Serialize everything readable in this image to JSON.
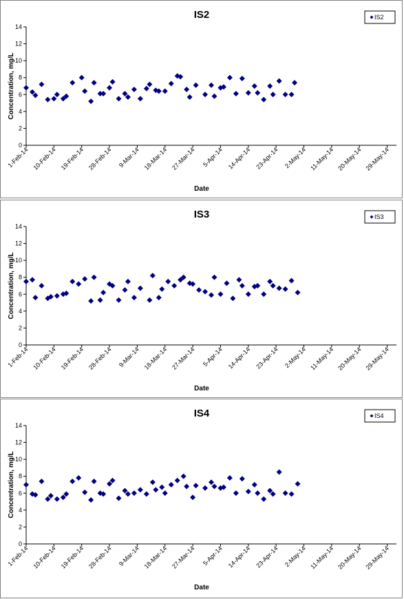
{
  "chart_data": [
    {
      "type": "scatter",
      "title": "IS2",
      "xlabel": "Date",
      "ylabel": "Concentration, mg/L",
      "ylim": [
        0,
        14
      ],
      "yticks": [
        0,
        2,
        4,
        6,
        8,
        10,
        12,
        14
      ],
      "xlim": [
        "2014-02-01",
        "2014-06-01"
      ],
      "xtick_labels": [
        "1-Feb-14",
        "10-Feb-14",
        "19-Feb-14",
        "28-Feb-14",
        "9-Mar-14",
        "18-Mar-14",
        "27-Mar-14",
        "5-Apr-14",
        "14-Apr-14",
        "23-Apr-14",
        "2-May-14",
        "11-May-14",
        "20-May-14",
        "29-May-14"
      ],
      "xtick_dates": [
        "2014-02-01",
        "2014-02-10",
        "2014-02-19",
        "2014-02-28",
        "2014-03-09",
        "2014-03-18",
        "2014-03-27",
        "2014-04-05",
        "2014-04-14",
        "2014-04-23",
        "2014-05-02",
        "2014-05-11",
        "2014-05-20",
        "2014-05-29"
      ],
      "grid": false,
      "legend_position": "top-right",
      "series": [
        {
          "name": "IS2",
          "color": "#000080",
          "marker": "diamond",
          "points": [
            [
              "2014-02-01",
              6.8
            ],
            [
              "2014-02-03",
              6.3
            ],
            [
              "2014-02-04",
              5.9
            ],
            [
              "2014-02-06",
              7.2
            ],
            [
              "2014-02-08",
              5.4
            ],
            [
              "2014-02-10",
              5.5
            ],
            [
              "2014-02-11",
              6.0
            ],
            [
              "2014-02-13",
              5.5
            ],
            [
              "2014-02-14",
              5.8
            ],
            [
              "2014-02-16",
              7.4
            ],
            [
              "2014-02-19",
              8.0
            ],
            [
              "2014-02-20",
              6.4
            ],
            [
              "2014-02-22",
              5.2
            ],
            [
              "2014-02-23",
              7.4
            ],
            [
              "2014-02-25",
              6.1
            ],
            [
              "2014-02-26",
              6.1
            ],
            [
              "2014-02-28",
              6.8
            ],
            [
              "2014-03-01",
              7.5
            ],
            [
              "2014-03-03",
              5.5
            ],
            [
              "2014-03-05",
              6.1
            ],
            [
              "2014-03-06",
              5.7
            ],
            [
              "2014-03-08",
              6.6
            ],
            [
              "2014-03-10",
              5.5
            ],
            [
              "2014-03-12",
              6.7
            ],
            [
              "2014-03-13",
              7.2
            ],
            [
              "2014-03-15",
              6.5
            ],
            [
              "2014-03-16",
              6.4
            ],
            [
              "2014-03-18",
              6.4
            ],
            [
              "2014-03-20",
              7.3
            ],
            [
              "2014-03-22",
              8.2
            ],
            [
              "2014-03-23",
              8.1
            ],
            [
              "2014-03-25",
              6.6
            ],
            [
              "2014-03-26",
              5.7
            ],
            [
              "2014-03-28",
              7.1
            ],
            [
              "2014-03-31",
              6.0
            ],
            [
              "2014-04-02",
              7.1
            ],
            [
              "2014-04-03",
              5.8
            ],
            [
              "2014-04-05",
              6.8
            ],
            [
              "2014-04-06",
              6.9
            ],
            [
              "2014-04-08",
              8.0
            ],
            [
              "2014-04-10",
              6.1
            ],
            [
              "2014-04-12",
              7.9
            ],
            [
              "2014-04-14",
              6.2
            ],
            [
              "2014-04-16",
              7.0
            ],
            [
              "2014-04-17",
              6.2
            ],
            [
              "2014-04-19",
              5.4
            ],
            [
              "2014-04-21",
              7.0
            ],
            [
              "2014-04-22",
              6.0
            ],
            [
              "2014-04-24",
              7.6
            ],
            [
              "2014-04-26",
              6.0
            ],
            [
              "2014-04-28",
              6.0
            ],
            [
              "2014-04-29",
              7.4
            ]
          ]
        }
      ]
    },
    {
      "type": "scatter",
      "title": "IS3",
      "xlabel": "Date",
      "ylabel": "Concentration, mg/L",
      "ylim": [
        0,
        14
      ],
      "yticks": [
        0,
        2,
        4,
        6,
        8,
        10,
        12,
        14
      ],
      "xlim": [
        "2014-02-01",
        "2014-06-01"
      ],
      "xtick_labels": [
        "1-Feb-14",
        "10-Feb-14",
        "19-Feb-14",
        "28-Feb-14",
        "9-Mar-14",
        "18-Mar-14",
        "27-Mar-14",
        "5-Apr-14",
        "14-Apr-14",
        "23-Apr-14",
        "2-May-14",
        "11-May-14",
        "20-May-14",
        "29-May-14"
      ],
      "xtick_dates": [
        "2014-02-01",
        "2014-02-10",
        "2014-02-19",
        "2014-02-28",
        "2014-03-09",
        "2014-03-18",
        "2014-03-27",
        "2014-04-05",
        "2014-04-14",
        "2014-04-23",
        "2014-05-02",
        "2014-05-11",
        "2014-05-20",
        "2014-05-29"
      ],
      "grid": false,
      "legend_position": "top-right",
      "series": [
        {
          "name": "IS3",
          "color": "#000080",
          "marker": "diamond",
          "points": [
            [
              "2014-02-01",
              7.5
            ],
            [
              "2014-02-03",
              7.7
            ],
            [
              "2014-02-04",
              5.6
            ],
            [
              "2014-02-06",
              7.0
            ],
            [
              "2014-02-08",
              5.5
            ],
            [
              "2014-02-09",
              5.7
            ],
            [
              "2014-02-11",
              5.8
            ],
            [
              "2014-02-13",
              6.0
            ],
            [
              "2014-02-14",
              6.1
            ],
            [
              "2014-02-16",
              7.5
            ],
            [
              "2014-02-18",
              7.2
            ],
            [
              "2014-02-20",
              7.8
            ],
            [
              "2014-02-22",
              5.2
            ],
            [
              "2014-02-23",
              8.0
            ],
            [
              "2014-02-25",
              5.3
            ],
            [
              "2014-02-26",
              6.2
            ],
            [
              "2014-02-28",
              7.2
            ],
            [
              "2014-03-01",
              7.0
            ],
            [
              "2014-03-03",
              5.3
            ],
            [
              "2014-03-05",
              6.5
            ],
            [
              "2014-03-06",
              7.5
            ],
            [
              "2014-03-08",
              5.6
            ],
            [
              "2014-03-10",
              6.7
            ],
            [
              "2014-03-13",
              5.3
            ],
            [
              "2014-03-14",
              8.2
            ],
            [
              "2014-03-16",
              5.6
            ],
            [
              "2014-03-17",
              6.6
            ],
            [
              "2014-03-19",
              7.5
            ],
            [
              "2014-03-21",
              7.0
            ],
            [
              "2014-03-23",
              7.7
            ],
            [
              "2014-03-24",
              8.0
            ],
            [
              "2014-03-26",
              7.3
            ],
            [
              "2014-03-27",
              7.2
            ],
            [
              "2014-03-29",
              6.5
            ],
            [
              "2014-03-31",
              6.3
            ],
            [
              "2014-04-02",
              5.9
            ],
            [
              "2014-04-03",
              8.0
            ],
            [
              "2014-04-05",
              6.0
            ],
            [
              "2014-04-07",
              7.3
            ],
            [
              "2014-04-09",
              5.5
            ],
            [
              "2014-04-11",
              7.7
            ],
            [
              "2014-04-12",
              7.0
            ],
            [
              "2014-04-14",
              6.0
            ],
            [
              "2014-04-16",
              6.9
            ],
            [
              "2014-04-17",
              7.0
            ],
            [
              "2014-04-19",
              6.0
            ],
            [
              "2014-04-21",
              7.5
            ],
            [
              "2014-04-22",
              7.0
            ],
            [
              "2014-04-24",
              6.7
            ],
            [
              "2014-04-26",
              6.6
            ],
            [
              "2014-04-28",
              7.6
            ],
            [
              "2014-04-30",
              6.2
            ]
          ]
        }
      ]
    },
    {
      "type": "scatter",
      "title": "IS4",
      "xlabel": "Date",
      "ylabel": "Concentration, mg/L",
      "ylim": [
        0,
        14
      ],
      "yticks": [
        0,
        2,
        4,
        6,
        8,
        10,
        12,
        14
      ],
      "xlim": [
        "2014-02-01",
        "2014-06-01"
      ],
      "xtick_labels": [
        "1-Feb-14",
        "10-Feb-14",
        "19-Feb-14",
        "28-Feb-14",
        "9-Mar-14",
        "18-Mar-14",
        "27-Mar-14",
        "5-Apr-14",
        "14-Apr-14",
        "23-Apr-14",
        "2-May-14",
        "11-May-14",
        "20-May-14",
        "29-May-14"
      ],
      "xtick_dates": [
        "2014-02-01",
        "2014-02-10",
        "2014-02-19",
        "2014-02-28",
        "2014-03-09",
        "2014-03-18",
        "2014-03-27",
        "2014-04-05",
        "2014-04-14",
        "2014-04-23",
        "2014-05-02",
        "2014-05-11",
        "2014-05-20",
        "2014-05-29"
      ],
      "grid": false,
      "legend_position": "top-right",
      "series": [
        {
          "name": "IS4",
          "color": "#000080",
          "marker": "diamond",
          "points": [
            [
              "2014-02-01",
              7.0
            ],
            [
              "2014-02-03",
              5.9
            ],
            [
              "2014-02-04",
              5.8
            ],
            [
              "2014-02-06",
              7.4
            ],
            [
              "2014-02-08",
              5.3
            ],
            [
              "2014-02-09",
              5.7
            ],
            [
              "2014-02-11",
              5.3
            ],
            [
              "2014-02-13",
              5.5
            ],
            [
              "2014-02-14",
              5.9
            ],
            [
              "2014-02-16",
              7.4
            ],
            [
              "2014-02-18",
              7.8
            ],
            [
              "2014-02-20",
              6.1
            ],
            [
              "2014-02-22",
              5.2
            ],
            [
              "2014-02-23",
              7.4
            ],
            [
              "2014-02-25",
              6.0
            ],
            [
              "2014-02-26",
              5.9
            ],
            [
              "2014-02-28",
              7.1
            ],
            [
              "2014-03-01",
              7.5
            ],
            [
              "2014-03-03",
              5.4
            ],
            [
              "2014-03-05",
              6.3
            ],
            [
              "2014-03-06",
              5.9
            ],
            [
              "2014-03-08",
              6.0
            ],
            [
              "2014-03-10",
              6.4
            ],
            [
              "2014-03-12",
              5.9
            ],
            [
              "2014-03-14",
              7.3
            ],
            [
              "2014-03-15",
              6.4
            ],
            [
              "2014-03-17",
              6.7
            ],
            [
              "2014-03-18",
              6.0
            ],
            [
              "2014-03-20",
              7.0
            ],
            [
              "2014-03-22",
              7.5
            ],
            [
              "2014-03-24",
              8.0
            ],
            [
              "2014-03-25",
              6.8
            ],
            [
              "2014-03-27",
              5.5
            ],
            [
              "2014-03-28",
              6.9
            ],
            [
              "2014-03-31",
              6.6
            ],
            [
              "2014-04-02",
              7.3
            ],
            [
              "2014-04-03",
              6.8
            ],
            [
              "2014-04-05",
              6.6
            ],
            [
              "2014-04-06",
              6.7
            ],
            [
              "2014-04-08",
              7.8
            ],
            [
              "2014-04-10",
              6.0
            ],
            [
              "2014-04-12",
              7.7
            ],
            [
              "2014-04-14",
              6.2
            ],
            [
              "2014-04-16",
              7.0
            ],
            [
              "2014-04-17",
              6.0
            ],
            [
              "2014-04-19",
              5.3
            ],
            [
              "2014-04-21",
              6.3
            ],
            [
              "2014-04-22",
              5.9
            ],
            [
              "2014-04-24",
              8.5
            ],
            [
              "2014-04-26",
              6.0
            ],
            [
              "2014-04-28",
              5.9
            ],
            [
              "2014-04-30",
              7.1
            ]
          ]
        }
      ]
    }
  ]
}
